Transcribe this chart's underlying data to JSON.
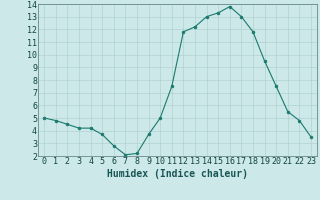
{
  "x": [
    0,
    1,
    2,
    3,
    4,
    5,
    6,
    7,
    8,
    9,
    10,
    11,
    12,
    13,
    14,
    15,
    16,
    17,
    18,
    19,
    20,
    21,
    22,
    23
  ],
  "y": [
    5.0,
    4.8,
    4.5,
    4.2,
    4.2,
    3.7,
    2.8,
    2.1,
    2.2,
    3.7,
    5.0,
    7.5,
    11.8,
    12.2,
    13.0,
    13.3,
    13.8,
    13.0,
    11.8,
    9.5,
    7.5,
    5.5,
    4.8,
    3.5
  ],
  "line_color": "#1a7a6e",
  "marker_color": "#1a7a6e",
  "bg_color": "#cce8e8",
  "grid_color": "#aacccc",
  "xlabel": "Humidex (Indice chaleur)",
  "ylim": [
    2,
    14
  ],
  "xlim": [
    -0.5,
    23.5
  ],
  "yticks": [
    2,
    3,
    4,
    5,
    6,
    7,
    8,
    9,
    10,
    11,
    12,
    13,
    14
  ],
  "xticks": [
    0,
    1,
    2,
    3,
    4,
    5,
    6,
    7,
    8,
    9,
    10,
    11,
    12,
    13,
    14,
    15,
    16,
    17,
    18,
    19,
    20,
    21,
    22,
    23
  ],
  "xlabel_fontsize": 7,
  "tick_fontsize": 6
}
